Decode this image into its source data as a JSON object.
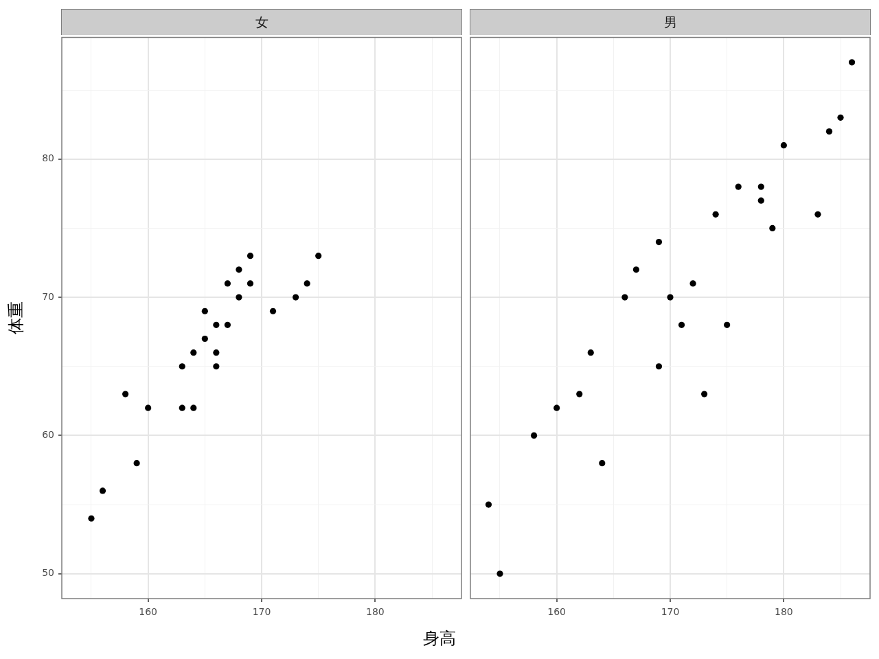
{
  "chart_data": [
    {
      "type": "scatter",
      "title": "女",
      "xlabel": "身高",
      "ylabel": "体重",
      "x": [
        155,
        156,
        158,
        159,
        160,
        163,
        163,
        164,
        164,
        165,
        165,
        166,
        166,
        166,
        167,
        167,
        168,
        168,
        169,
        169,
        171,
        173,
        174,
        175
      ],
      "values": [
        54,
        56,
        63,
        58,
        62,
        65,
        62,
        66,
        62,
        69,
        67,
        68,
        66,
        65,
        71,
        68,
        72,
        70,
        73,
        71,
        69,
        70,
        71,
        73
      ],
      "color": "#000000",
      "marker": "circle",
      "xlim": [
        152.4,
        187.6
      ],
      "ylim": [
        48.2,
        88.8
      ],
      "xticks": [
        {
          "value": 155,
          "label": null
        },
        160,
        {
          "value": 165,
          "label": null
        },
        170,
        {
          "value": 175,
          "label": null
        },
        180,
        {
          "value": 185,
          "label": null
        }
      ],
      "yticks": [
        50,
        {
          "value": 55,
          "label": null
        },
        60,
        {
          "value": 65,
          "label": null
        },
        70,
        {
          "value": 75,
          "label": null
        },
        80,
        {
          "value": 85,
          "label": null
        }
      ],
      "grid": true
    },
    {
      "type": "scatter",
      "title": "男",
      "x": [
        154,
        155,
        158,
        160,
        162,
        163,
        164,
        166,
        167,
        169,
        169,
        170,
        171,
        172,
        173,
        174,
        175,
        176,
        178,
        178,
        179,
        180,
        183,
        184,
        185,
        186
      ],
      "values": [
        55,
        50,
        60,
        62,
        63,
        66,
        58,
        70,
        72,
        74,
        65,
        70,
        68,
        71,
        63,
        76,
        68,
        78,
        78,
        77,
        75,
        81,
        76,
        82,
        83,
        87
      ],
      "color": "#000000",
      "marker": "circle",
      "xlim": [
        152.4,
        187.6
      ],
      "ylim": [
        48.2,
        88.8
      ],
      "xticks": [
        {
          "value": 155,
          "label": null
        },
        160,
        {
          "value": 165,
          "label": null
        },
        170,
        {
          "value": 175,
          "label": null
        },
        180,
        {
          "value": 185,
          "label": null
        }
      ],
      "yticks": [
        50,
        {
          "value": 55,
          "label": null
        },
        60,
        {
          "value": 65,
          "label": null
        },
        70,
        {
          "value": 75,
          "label": null
        },
        80,
        {
          "value": 85,
          "label": null
        }
      ],
      "grid": true,
      "tick_labels": "x"
    }
  ]
}
